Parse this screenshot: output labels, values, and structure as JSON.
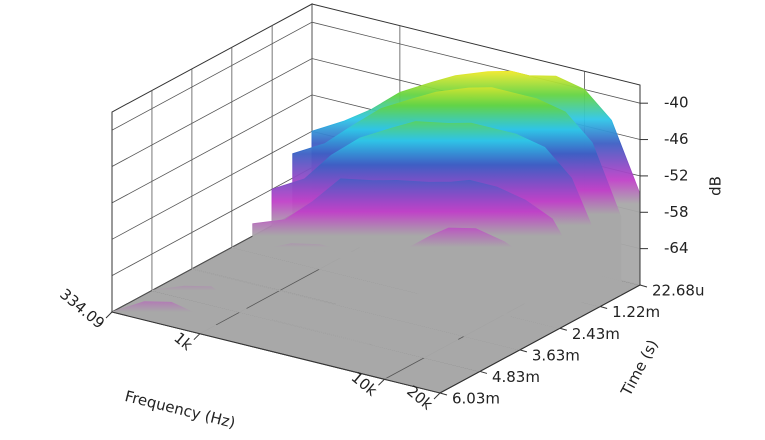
{
  "chart_data": {
    "type": "waterfall",
    "xlabel": "Frequency (Hz)",
    "ylabel": "Time (s)",
    "zlabel": "dB",
    "x": [
      334.09,
      500,
      700,
      1000,
      1500,
      2000,
      3000,
      4000,
      5000,
      7000,
      10000,
      14000,
      20000
    ],
    "xlim": [
      334.09,
      20000
    ],
    "xscale": "log",
    "xticks": [
      334.09,
      {
        "value": 1000,
        "label": "1k"
      },
      {
        "value": 10000,
        "label": "10k"
      },
      {
        "value": 20000,
        "label": "20k"
      }
    ],
    "y": [
      2.268e-05,
      0.0006,
      0.00122,
      0.0018,
      0.00243,
      0.00363,
      0.00483,
      0.00603
    ],
    "ylim": [
      2.268e-05,
      0.00603
    ],
    "yticks": [
      {
        "value": 2.268e-05,
        "label": "22.68u"
      },
      {
        "value": 0.00122,
        "label": "1.22m"
      },
      {
        "value": 0.00243,
        "label": "2.43m"
      },
      {
        "value": 0.00363,
        "label": "3.63m"
      },
      {
        "value": 0.00483,
        "label": "4.83m"
      },
      {
        "value": 0.00603,
        "label": "6.03m"
      }
    ],
    "zlim": [
      -70,
      -37
    ],
    "zticks": [
      -40,
      -46,
      -52,
      -58,
      -64
    ],
    "values": [
      [
        -58,
        -55,
        -52,
        -48,
        -45,
        -43,
        -41,
        -40,
        -40,
        -39,
        -40,
        -44,
        -55
      ],
      [
        -60,
        -57,
        -53,
        -49,
        -46,
        -44,
        -42,
        -41,
        -41,
        -41,
        -42,
        -46,
        -57
      ],
      [
        -64,
        -61,
        -56,
        -52,
        -49,
        -47,
        -46,
        -45,
        -45,
        -45,
        -46,
        -50,
        -60
      ],
      [
        -68,
        -66,
        -62,
        -57,
        -56,
        -55,
        -54,
        -53,
        -52,
        -52,
        -53,
        -55,
        -62
      ],
      [
        -70,
        -69,
        -67,
        -66,
        -66,
        -65,
        -63,
        -60,
        -58,
        -57,
        -58,
        -60,
        -64
      ],
      [
        -70,
        -70,
        -70,
        -70,
        -70,
        -70,
        -69,
        -68,
        -66,
        -63,
        -62,
        -63,
        -66
      ],
      [
        -70,
        -68,
        -67,
        -69,
        -70,
        -70,
        -70,
        -70,
        -70,
        -69,
        -66,
        -65,
        -68
      ],
      [
        -70,
        -67,
        -66,
        -67,
        -69,
        -70,
        -70,
        -70,
        -70,
        -70,
        -70,
        -68,
        -70
      ]
    ],
    "colorscale": [
      {
        "value": -40,
        "color": "#e8251e"
      },
      {
        "value": -44,
        "color": "#f39a1c"
      },
      {
        "value": -48,
        "color": "#f3ea2a"
      },
      {
        "value": -52,
        "color": "#63d443"
      },
      {
        "value": -56,
        "color": "#2ec6e8"
      },
      {
        "value": -60,
        "color": "#3d5fc4"
      },
      {
        "value": -66,
        "color": "#c040c8"
      },
      {
        "value": -70,
        "color": "#a8a8a8"
      }
    ],
    "floor_color": "#a8a8a8",
    "grid": true
  }
}
